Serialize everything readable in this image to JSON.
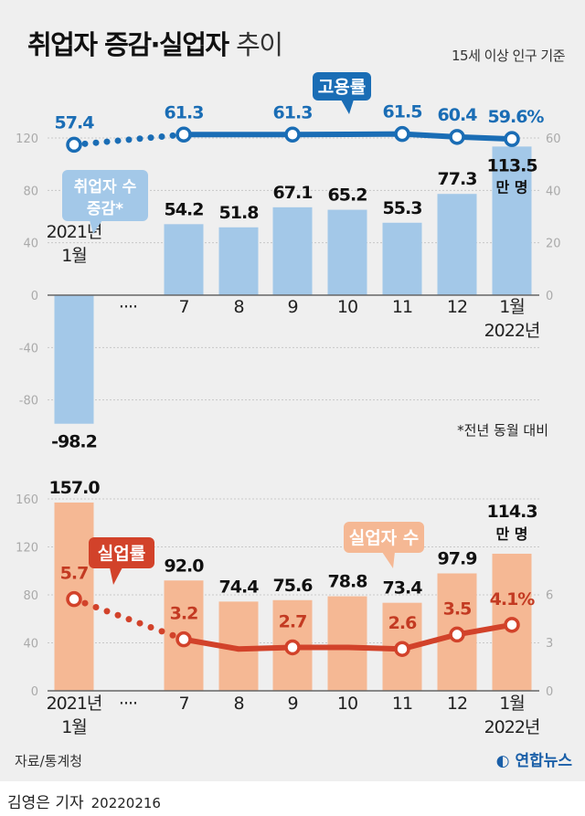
{
  "title": {
    "main": "취업자 증감·실업자",
    "light": "추이"
  },
  "note": "15세 이상 인구 기준",
  "footnote": "*전년 동월 대비",
  "source": "자료/통계청",
  "logo": "연합뉴스",
  "byline": {
    "reporter": "김영은 기자",
    "date": "20220216"
  },
  "chart_data": [
    {
      "type": "bar+line",
      "categories": [
        "2021년 1월",
        "····",
        "7",
        "8",
        "9",
        "10",
        "11",
        "12",
        "1월 2022년"
      ],
      "category_lines": [
        [
          "2021년",
          "1월"
        ],
        [
          "····"
        ],
        [
          "7"
        ],
        [
          "8"
        ],
        [
          "9"
        ],
        [
          "10"
        ],
        [
          "11"
        ],
        [
          "12"
        ],
        [
          "1월",
          "2022년"
        ]
      ],
      "bar_series": {
        "name": "취업자 수 증감*",
        "values": [
          -98.2,
          null,
          54.2,
          51.8,
          67.1,
          65.2,
          55.3,
          77.3,
          113.5
        ],
        "labels": [
          "-98.2",
          "",
          "54.2",
          "51.8",
          "67.1",
          "65.2",
          "55.3",
          "77.3",
          "113.5"
        ],
        "unit": "만 명",
        "color": "#a3c8e8"
      },
      "line_series": {
        "name": "고용률",
        "values": [
          57.4,
          null,
          61.3,
          61.3,
          61.3,
          61.4,
          61.5,
          60.4,
          59.6
        ],
        "labels": [
          "57.4",
          "",
          "61.3",
          "",
          "61.3",
          "",
          "61.5",
          "60.4",
          "59.6%"
        ],
        "color": "#1a6db5"
      },
      "left_axis": {
        "ticks": [
          -80,
          -40,
          0,
          40,
          80,
          120
        ],
        "range": [
          -100,
          125
        ]
      },
      "right_axis": {
        "ticks": [
          0,
          20,
          40,
          60
        ],
        "range": [
          0,
          62
        ]
      },
      "grid": true
    },
    {
      "type": "bar+line",
      "categories": [
        "2021년 1월",
        "····",
        "7",
        "8",
        "9",
        "10",
        "11",
        "12",
        "1월 2022년"
      ],
      "category_lines": [
        [
          "2021년",
          "1월"
        ],
        [
          "····"
        ],
        [
          "7"
        ],
        [
          "8"
        ],
        [
          "9"
        ],
        [
          "10"
        ],
        [
          "11"
        ],
        [
          "12"
        ],
        [
          "1월",
          "2022년"
        ]
      ],
      "bar_series": {
        "name": "실업자 수",
        "values": [
          157.0,
          null,
          92.0,
          74.4,
          75.6,
          78.8,
          73.4,
          97.9,
          114.3
        ],
        "labels": [
          "157.0",
          "",
          "92.0",
          "74.4",
          "75.6",
          "78.8",
          "73.4",
          "97.9",
          "114.3"
        ],
        "unit": "만 명",
        "color": "#f5b894"
      },
      "line_series": {
        "name": "실업률",
        "values": [
          5.7,
          null,
          3.2,
          2.6,
          2.7,
          2.7,
          2.6,
          3.5,
          4.1
        ],
        "labels": [
          "5.7",
          "",
          "3.2",
          "",
          "2.7",
          "",
          "2.6",
          "3.5",
          "4.1%"
        ],
        "color": "#d2422a"
      },
      "left_axis": {
        "ticks": [
          0,
          40,
          80,
          120,
          160
        ],
        "range": [
          0,
          165
        ]
      },
      "right_axis": {
        "ticks": [
          0,
          3,
          6
        ],
        "range": [
          0,
          9
        ]
      },
      "grid": true
    }
  ]
}
